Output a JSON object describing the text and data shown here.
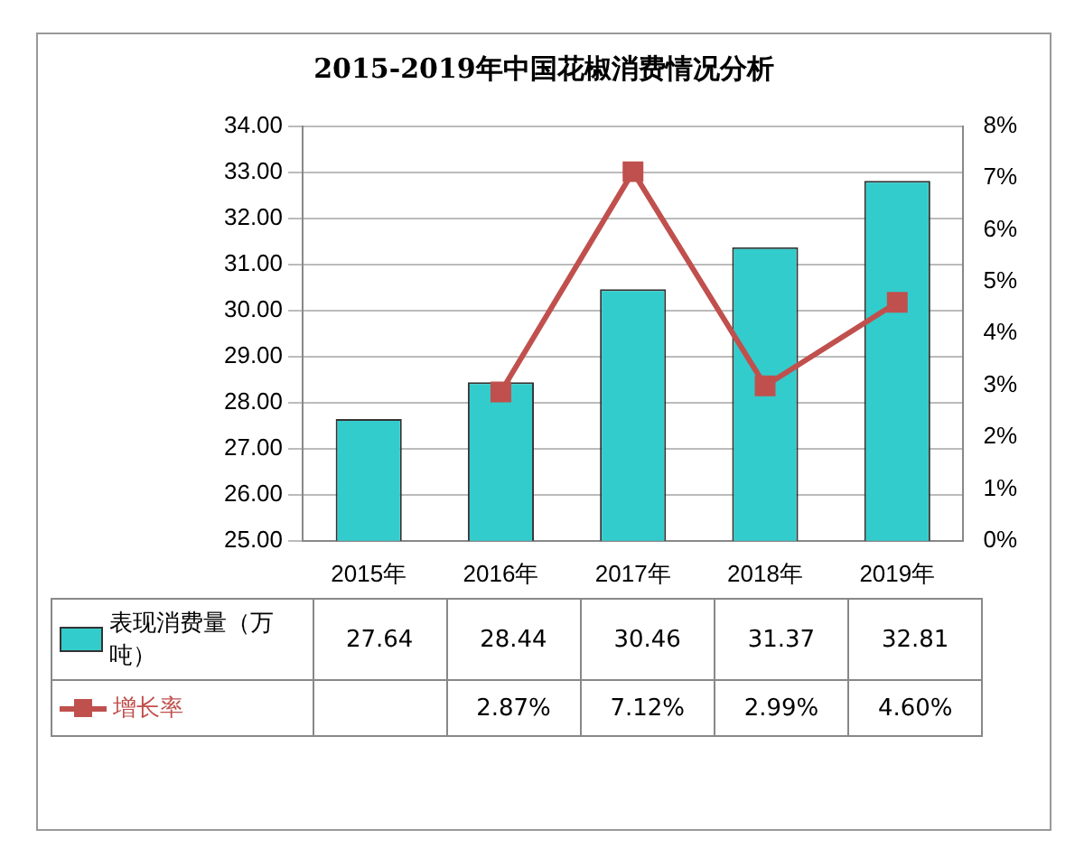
{
  "chart_data": {
    "type": "bar",
    "title": "2015-2019年中国花椒消费情况分析",
    "categories": [
      "2015年",
      "2016年",
      "2017年",
      "2018年",
      "2019年"
    ],
    "series": [
      {
        "name": "表现消费量（万吨）",
        "color": "#33cccc",
        "values": [
          27.64,
          28.44,
          30.46,
          31.37,
          32.81
        ]
      },
      {
        "name": "增长率",
        "type": "line",
        "axis": "y2",
        "color": "#c0504d",
        "marker": "square",
        "values": [
          null,
          2.87,
          7.12,
          2.99,
          4.6
        ],
        "value_labels": [
          null,
          "2.87%",
          "7.12%",
          "2.99%",
          "4.60%"
        ]
      }
    ],
    "ylim": [
      25,
      34
    ],
    "yticks": [
      {
        "value": 25,
        "label": "25.00"
      },
      {
        "value": 26,
        "label": "26.00"
      },
      {
        "value": 27,
        "label": "27.00"
      },
      {
        "value": 28,
        "label": "28.00"
      },
      {
        "value": 29,
        "label": "29.00"
      },
      {
        "value": 30,
        "label": "30.00"
      },
      {
        "value": 31,
        "label": "31.00"
      },
      {
        "value": 32,
        "label": "32.00"
      },
      {
        "value": 33,
        "label": "33.00"
      },
      {
        "value": 34,
        "label": "34.00"
      }
    ],
    "y2lim": [
      0,
      8
    ],
    "y2ticks": [
      {
        "value": 0,
        "label": "0%"
      },
      {
        "value": 1,
        "label": "1%"
      },
      {
        "value": 2,
        "label": "2%"
      },
      {
        "value": 3,
        "label": "3%"
      },
      {
        "value": 4,
        "label": "4%"
      },
      {
        "value": 5,
        "label": "5%"
      },
      {
        "value": 6,
        "label": "6%"
      },
      {
        "value": 7,
        "label": "7%"
      },
      {
        "value": 8,
        "label": "8%"
      }
    ],
    "grid": "y",
    "legend": "bottom left",
    "data_labels": true
  }
}
